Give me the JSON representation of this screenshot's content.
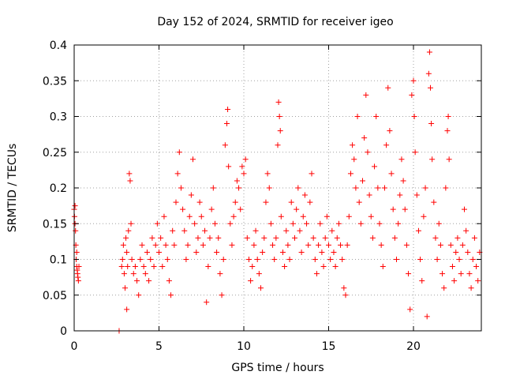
{
  "chart_data": {
    "type": "scatter",
    "title": "Day 152 of 2024, SRMTID for receiver igeo",
    "xlabel": "GPS time / hours",
    "ylabel": "SRMTID / TECUs",
    "xlim": [
      0,
      24
    ],
    "ylim": [
      0,
      0.4
    ],
    "xticks": [
      0,
      5,
      10,
      15,
      20
    ],
    "yticks": [
      0,
      0.05,
      0.1,
      0.15,
      0.2,
      0.25,
      0.3,
      0.35,
      0.4
    ],
    "xtick_labels": [
      "0",
      "5",
      "10",
      "15",
      "20"
    ],
    "ytick_labels": [
      "0",
      "0.05",
      "0.1",
      "0.15",
      "0.2",
      "0.25",
      "0.3",
      "0.35",
      "0.4"
    ],
    "grid": true,
    "marker": "+",
    "color": "#ff0000",
    "series": [
      {
        "name": "SRMTID",
        "points": [
          [
            0.0,
            0.17
          ],
          [
            0.02,
            0.16
          ],
          [
            0.05,
            0.15
          ],
          [
            0.08,
            0.14
          ],
          [
            0.1,
            0.12
          ],
          [
            0.12,
            0.1
          ],
          [
            0.15,
            0.09
          ],
          [
            0.18,
            0.085
          ],
          [
            0.2,
            0.08
          ],
          [
            0.22,
            0.075
          ],
          [
            0.25,
            0.07
          ],
          [
            0.28,
            0.09
          ],
          [
            0.05,
            0.175
          ],
          [
            0.15,
            0.11
          ],
          [
            2.65,
            0.0
          ],
          [
            2.8,
            0.09
          ],
          [
            2.85,
            0.1
          ],
          [
            2.9,
            0.12
          ],
          [
            2.95,
            0.08
          ],
          [
            3.0,
            0.06
          ],
          [
            3.05,
            0.13
          ],
          [
            3.1,
            0.11
          ],
          [
            3.1,
            0.03
          ],
          [
            3.15,
            0.09
          ],
          [
            3.2,
            0.14
          ],
          [
            3.25,
            0.22
          ],
          [
            3.3,
            0.21
          ],
          [
            3.35,
            0.15
          ],
          [
            3.4,
            0.1
          ],
          [
            3.5,
            0.08
          ],
          [
            3.6,
            0.09
          ],
          [
            3.7,
            0.07
          ],
          [
            3.8,
            0.05
          ],
          [
            3.9,
            0.1
          ],
          [
            4.0,
            0.12
          ],
          [
            4.1,
            0.09
          ],
          [
            4.2,
            0.08
          ],
          [
            4.3,
            0.11
          ],
          [
            4.4,
            0.07
          ],
          [
            4.5,
            0.1
          ],
          [
            4.6,
            0.13
          ],
          [
            4.7,
            0.09
          ],
          [
            4.8,
            0.12
          ],
          [
            4.9,
            0.15
          ],
          [
            5.0,
            0.11
          ],
          [
            5.1,
            0.13
          ],
          [
            5.2,
            0.09
          ],
          [
            5.3,
            0.16
          ],
          [
            5.4,
            0.12
          ],
          [
            5.5,
            0.1
          ],
          [
            5.6,
            0.07
          ],
          [
            5.7,
            0.05
          ],
          [
            5.8,
            0.14
          ],
          [
            5.9,
            0.12
          ],
          [
            6.0,
            0.18
          ],
          [
            6.1,
            0.22
          ],
          [
            6.2,
            0.25
          ],
          [
            6.3,
            0.2
          ],
          [
            6.4,
            0.17
          ],
          [
            6.5,
            0.14
          ],
          [
            6.6,
            0.1
          ],
          [
            6.7,
            0.12
          ],
          [
            6.8,
            0.16
          ],
          [
            6.9,
            0.19
          ],
          [
            7.0,
            0.24
          ],
          [
            7.1,
            0.15
          ],
          [
            7.2,
            0.11
          ],
          [
            7.3,
            0.13
          ],
          [
            7.4,
            0.18
          ],
          [
            7.5,
            0.16
          ],
          [
            7.6,
            0.12
          ],
          [
            7.7,
            0.14
          ],
          [
            7.8,
            0.04
          ],
          [
            7.9,
            0.09
          ],
          [
            8.0,
            0.13
          ],
          [
            8.1,
            0.17
          ],
          [
            8.2,
            0.2
          ],
          [
            8.3,
            0.15
          ],
          [
            8.4,
            0.11
          ],
          [
            8.5,
            0.13
          ],
          [
            8.6,
            0.08
          ],
          [
            8.7,
            0.05
          ],
          [
            8.8,
            0.1
          ],
          [
            8.9,
            0.26
          ],
          [
            9.0,
            0.29
          ],
          [
            9.05,
            0.31
          ],
          [
            9.1,
            0.23
          ],
          [
            9.2,
            0.15
          ],
          [
            9.3,
            0.12
          ],
          [
            9.4,
            0.16
          ],
          [
            9.5,
            0.18
          ],
          [
            9.6,
            0.21
          ],
          [
            9.7,
            0.2
          ],
          [
            9.8,
            0.17
          ],
          [
            9.9,
            0.23
          ],
          [
            10.0,
            0.22
          ],
          [
            10.1,
            0.24
          ],
          [
            10.2,
            0.13
          ],
          [
            10.3,
            0.1
          ],
          [
            10.4,
            0.07
          ],
          [
            10.5,
            0.09
          ],
          [
            10.6,
            0.12
          ],
          [
            10.7,
            0.14
          ],
          [
            10.8,
            0.1
          ],
          [
            10.9,
            0.08
          ],
          [
            11.0,
            0.06
          ],
          [
            11.1,
            0.11
          ],
          [
            11.2,
            0.13
          ],
          [
            11.3,
            0.18
          ],
          [
            11.4,
            0.22
          ],
          [
            11.5,
            0.2
          ],
          [
            11.6,
            0.15
          ],
          [
            11.7,
            0.12
          ],
          [
            11.8,
            0.1
          ],
          [
            11.9,
            0.13
          ],
          [
            12.0,
            0.26
          ],
          [
            12.05,
            0.32
          ],
          [
            12.1,
            0.3
          ],
          [
            12.15,
            0.28
          ],
          [
            12.2,
            0.16
          ],
          [
            12.3,
            0.11
          ],
          [
            12.4,
            0.09
          ],
          [
            12.5,
            0.14
          ],
          [
            12.6,
            0.12
          ],
          [
            12.7,
            0.1
          ],
          [
            12.8,
            0.18
          ],
          [
            12.9,
            0.15
          ],
          [
            13.0,
            0.13
          ],
          [
            13.1,
            0.17
          ],
          [
            13.2,
            0.2
          ],
          [
            13.3,
            0.14
          ],
          [
            13.4,
            0.11
          ],
          [
            13.5,
            0.16
          ],
          [
            13.6,
            0.19
          ],
          [
            13.7,
            0.15
          ],
          [
            13.8,
            0.12
          ],
          [
            13.9,
            0.18
          ],
          [
            14.0,
            0.22
          ],
          [
            14.1,
            0.13
          ],
          [
            14.2,
            0.1
          ],
          [
            14.3,
            0.08
          ],
          [
            14.4,
            0.12
          ],
          [
            14.5,
            0.15
          ],
          [
            14.6,
            0.11
          ],
          [
            14.7,
            0.09
          ],
          [
            14.8,
            0.13
          ],
          [
            14.9,
            0.16
          ],
          [
            15.0,
            0.12
          ],
          [
            15.1,
            0.1
          ],
          [
            15.2,
            0.14
          ],
          [
            15.3,
            0.11
          ],
          [
            15.4,
            0.09
          ],
          [
            15.5,
            0.13
          ],
          [
            15.6,
            0.15
          ],
          [
            15.7,
            0.12
          ],
          [
            15.8,
            0.1
          ],
          [
            15.9,
            0.06
          ],
          [
            16.0,
            0.05
          ],
          [
            16.1,
            0.12
          ],
          [
            16.2,
            0.16
          ],
          [
            16.3,
            0.22
          ],
          [
            16.4,
            0.26
          ],
          [
            16.5,
            0.24
          ],
          [
            16.6,
            0.2
          ],
          [
            16.7,
            0.3
          ],
          [
            16.8,
            0.18
          ],
          [
            16.9,
            0.15
          ],
          [
            17.0,
            0.21
          ],
          [
            17.1,
            0.27
          ],
          [
            17.2,
            0.33
          ],
          [
            17.3,
            0.25
          ],
          [
            17.4,
            0.19
          ],
          [
            17.5,
            0.16
          ],
          [
            17.6,
            0.13
          ],
          [
            17.7,
            0.23
          ],
          [
            17.8,
            0.3
          ],
          [
            17.9,
            0.2
          ],
          [
            18.0,
            0.15
          ],
          [
            18.1,
            0.12
          ],
          [
            18.2,
            0.09
          ],
          [
            18.3,
            0.2
          ],
          [
            18.4,
            0.26
          ],
          [
            18.5,
            0.34
          ],
          [
            18.6,
            0.28
          ],
          [
            18.7,
            0.22
          ],
          [
            18.8,
            0.17
          ],
          [
            18.9,
            0.13
          ],
          [
            19.0,
            0.1
          ],
          [
            19.1,
            0.15
          ],
          [
            19.2,
            0.19
          ],
          [
            19.3,
            0.24
          ],
          [
            19.4,
            0.21
          ],
          [
            19.5,
            0.17
          ],
          [
            19.6,
            0.12
          ],
          [
            19.7,
            0.08
          ],
          [
            19.8,
            0.03
          ],
          [
            19.9,
            0.33
          ],
          [
            20.0,
            0.35
          ],
          [
            20.05,
            0.3
          ],
          [
            20.1,
            0.25
          ],
          [
            20.2,
            0.19
          ],
          [
            20.3,
            0.14
          ],
          [
            20.4,
            0.1
          ],
          [
            20.5,
            0.07
          ],
          [
            20.6,
            0.16
          ],
          [
            20.7,
            0.2
          ],
          [
            20.8,
            0.02
          ],
          [
            20.9,
            0.36
          ],
          [
            20.95,
            0.39
          ],
          [
            21.0,
            0.34
          ],
          [
            21.05,
            0.29
          ],
          [
            21.1,
            0.24
          ],
          [
            21.2,
            0.18
          ],
          [
            21.3,
            0.13
          ],
          [
            21.4,
            0.1
          ],
          [
            21.5,
            0.15
          ],
          [
            21.6,
            0.12
          ],
          [
            21.7,
            0.08
          ],
          [
            21.8,
            0.06
          ],
          [
            21.9,
            0.2
          ],
          [
            22.0,
            0.28
          ],
          [
            22.05,
            0.3
          ],
          [
            22.1,
            0.24
          ],
          [
            22.2,
            0.12
          ],
          [
            22.3,
            0.09
          ],
          [
            22.4,
            0.07
          ],
          [
            22.5,
            0.11
          ],
          [
            22.6,
            0.13
          ],
          [
            22.7,
            0.1
          ],
          [
            22.8,
            0.08
          ],
          [
            22.9,
            0.12
          ],
          [
            23.0,
            0.17
          ],
          [
            23.1,
            0.14
          ],
          [
            23.2,
            0.11
          ],
          [
            23.3,
            0.08
          ],
          [
            23.4,
            0.06
          ],
          [
            23.5,
            0.1
          ],
          [
            23.6,
            0.13
          ],
          [
            23.7,
            0.09
          ],
          [
            23.8,
            0.07
          ],
          [
            23.9,
            0.11
          ]
        ]
      }
    ]
  }
}
